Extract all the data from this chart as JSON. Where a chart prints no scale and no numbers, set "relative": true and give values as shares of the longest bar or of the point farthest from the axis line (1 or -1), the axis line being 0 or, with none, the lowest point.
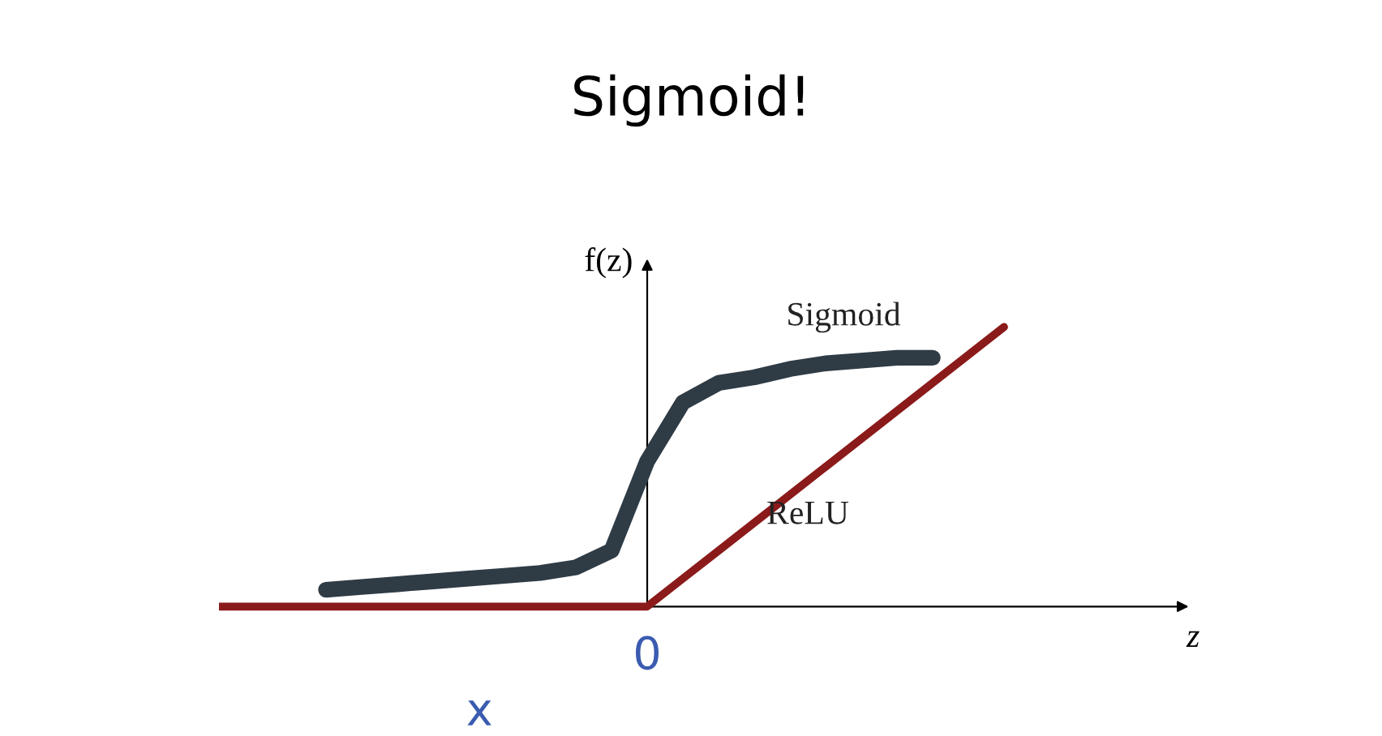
{
  "chart_data": {
    "type": "line",
    "title": "Sigmoid!",
    "xlabel": "z",
    "ylabel": "f(z)",
    "relative": true,
    "categories": [
      null,
      null,
      null,
      null,
      null,
      null,
      null,
      null,
      null,
      null,
      null,
      null,
      null,
      null,
      null,
      null,
      null,
      null,
      null,
      null,
      null,
      null,
      null
    ],
    "series": [
      {
        "name": "Sigmoid",
        "color": "#2f3b45",
        "values": [
          null,
          null,
          null,
          0.06,
          0.07,
          0.08,
          0.09,
          0.1,
          0.11,
          0.12,
          0.14,
          0.2,
          0.52,
          0.73,
          0.8,
          0.82,
          0.85,
          0.87,
          0.88,
          0.89,
          0.89,
          null,
          null
        ]
      },
      {
        "name": "ReLU",
        "color": "#8b1a1a",
        "values": [
          0,
          0,
          0,
          0,
          0,
          0,
          0,
          0,
          0,
          0,
          0,
          0,
          0,
          0.1,
          0.2,
          0.3,
          0.4,
          0.5,
          0.6,
          0.7,
          0.8,
          0.9,
          1.0
        ]
      }
    ],
    "annotations": [
      "0",
      "x"
    ],
    "legend": false,
    "marker": "none",
    "line_style": "solid"
  }
}
